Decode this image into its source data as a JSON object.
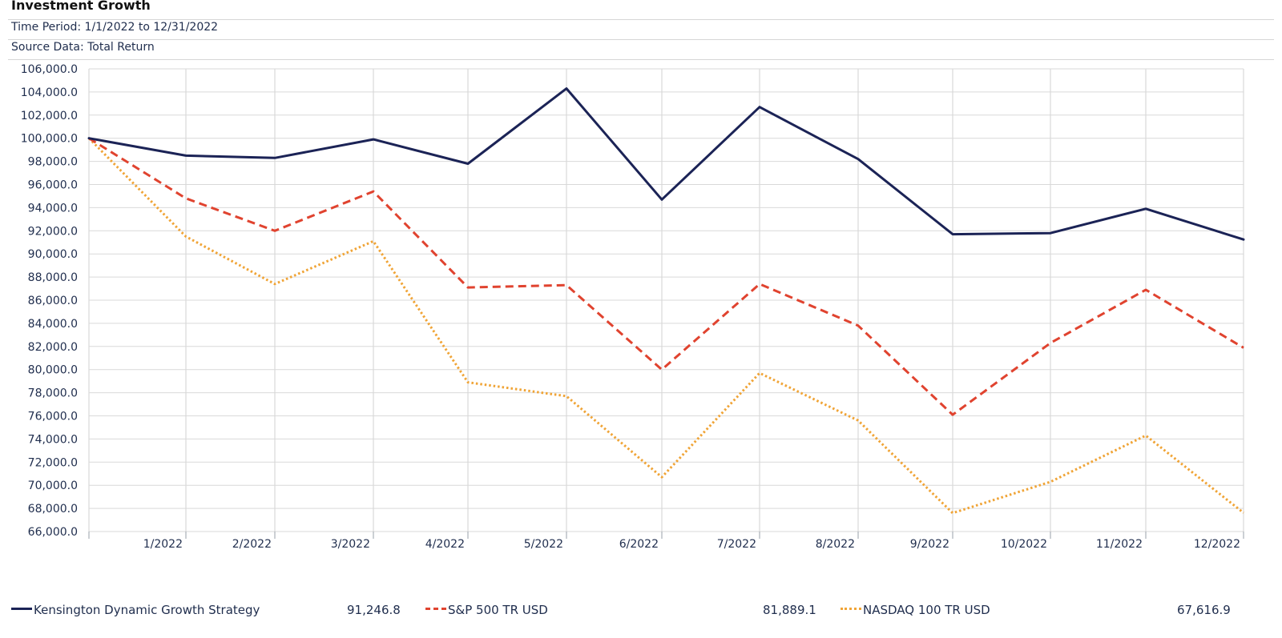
{
  "header": {
    "title": "Investment Growth",
    "time_period": "Time Period: 1/1/2022 to 12/31/2022",
    "source": "Source Data: Total Return"
  },
  "colors": {
    "kensington": "#1b2356",
    "sp500": "#e0432f",
    "nasdaq": "#f0a436",
    "grid": "#d9d9d9",
    "text": "#1f2d4d"
  },
  "chart_data": {
    "type": "line",
    "title": "Investment Growth",
    "x": [
      "",
      "1/2022",
      "2/2022",
      "3/2022",
      "4/2022",
      "5/2022",
      "6/2022",
      "7/2022",
      "8/2022",
      "9/2022",
      "10/2022",
      "11/2022",
      "12/2022"
    ],
    "ylim": [
      66000,
      106000
    ],
    "yticks": [
      "106,000.0",
      "104,000.0",
      "102,000.0",
      "100,000.0",
      "98,000.0",
      "96,000.0",
      "94,000.0",
      "92,000.0",
      "90,000.0",
      "88,000.0",
      "86,000.0",
      "84,000.0",
      "82,000.0",
      "80,000.0",
      "78,000.0",
      "76,000.0",
      "74,000.0",
      "72,000.0",
      "70,000.0",
      "68,000.0",
      "66,000.0"
    ],
    "grid": true,
    "legend_position": "bottom",
    "series": [
      {
        "name": "Kensington Dynamic Growth Strategy",
        "style": "solid",
        "values": [
          100000,
          98500,
          98300,
          99900,
          97800,
          104300,
          94700,
          102700,
          98200,
          91700,
          91800,
          93900,
          91246.8
        ]
      },
      {
        "name": "S&P 500 TR USD",
        "style": "dashed",
        "values": [
          100000,
          94800,
          92000,
          95400,
          87100,
          87300,
          80000,
          87400,
          83800,
          76100,
          82300,
          86900,
          81889.1
        ]
      },
      {
        "name": "NASDAQ 100 TR USD",
        "style": "dotted",
        "values": [
          100000,
          91500,
          87400,
          91100,
          78900,
          77700,
          70700,
          79700,
          75600,
          67600,
          70300,
          74300,
          67616.9
        ]
      }
    ]
  },
  "legend": [
    {
      "label": "Kensington Dynamic Growth Strategy",
      "value": "91,246.8"
    },
    {
      "label": "S&P 500 TR USD",
      "value": "81,889.1"
    },
    {
      "label": "NASDAQ 100 TR USD",
      "value": "67,616.9"
    }
  ]
}
